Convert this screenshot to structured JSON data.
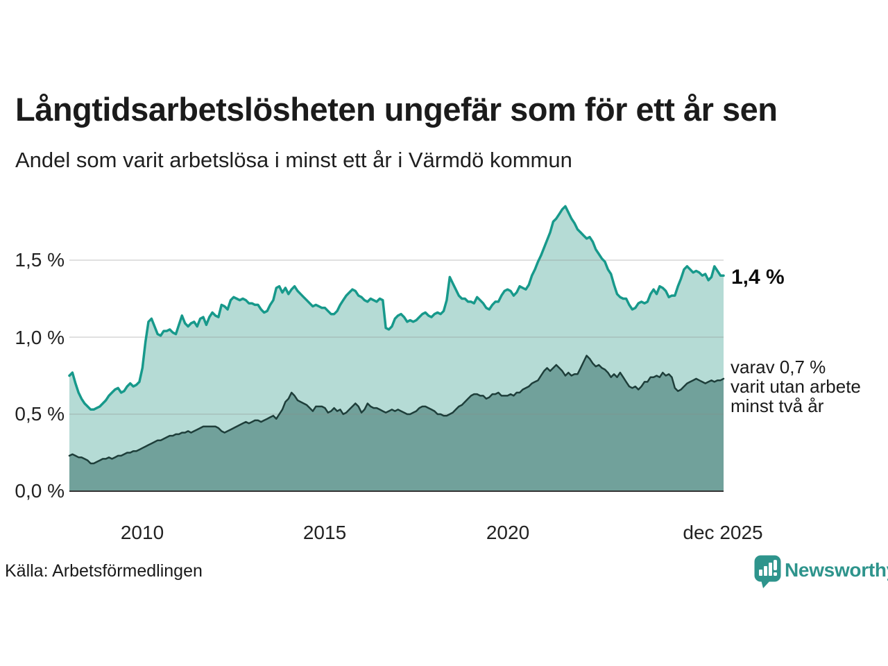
{
  "header": {
    "title": "Långtidsarbetslösheten ungefär som för ett år sen",
    "subtitle": "Andel som varit arbetslösa i minst ett år i Värmdö kommun"
  },
  "footer": {
    "source": "Källa: Arbetsförmedlingen",
    "brand": "Newsworthy",
    "brand_color": "#2e948c"
  },
  "chart_data": {
    "type": "area",
    "title": "Långtidsarbetslösheten ungefär som för ett år sen",
    "subtitle": "Andel som varit arbetslösa i minst ett år i Värmdö kommun",
    "unit": "%",
    "x_start": "jan 2008",
    "x_end": "dec 2025",
    "ylim": [
      0,
      1.95
    ],
    "grid": true,
    "grid_color": "#8a8a8a",
    "axis_color": "#333333",
    "y_ticks": [
      {
        "value": 1.5,
        "label": "1,5 %"
      },
      {
        "value": 1.0,
        "label": "1,0 %"
      },
      {
        "value": 0.5,
        "label": "0,5 %"
      },
      {
        "value": 0.0,
        "label": "0,0 %"
      }
    ],
    "x_ticks": [
      {
        "year": 2010,
        "label": "2010"
      },
      {
        "year": 2015,
        "label": "2015"
      },
      {
        "year": 2020,
        "label": "2020"
      },
      {
        "year": 2025.92,
        "label": "dec 2025"
      }
    ],
    "series": [
      {
        "name": "Andel som varit arbetslösa minst ett år",
        "color": "#17998b",
        "fill": "#b5dbd5",
        "end_label": "1,4 %",
        "end_value": 1.4,
        "values": [
          0.75,
          0.77,
          0.7,
          0.64,
          0.6,
          0.57,
          0.55,
          0.53,
          0.53,
          0.54,
          0.55,
          0.57,
          0.59,
          0.62,
          0.64,
          0.66,
          0.67,
          0.64,
          0.65,
          0.68,
          0.7,
          0.68,
          0.69,
          0.71,
          0.8,
          0.97,
          1.1,
          1.12,
          1.07,
          1.02,
          1.01,
          1.04,
          1.04,
          1.05,
          1.03,
          1.02,
          1.08,
          1.14,
          1.09,
          1.07,
          1.09,
          1.1,
          1.07,
          1.12,
          1.13,
          1.08,
          1.13,
          1.16,
          1.14,
          1.13,
          1.21,
          1.2,
          1.18,
          1.24,
          1.26,
          1.25,
          1.24,
          1.25,
          1.24,
          1.22,
          1.22,
          1.21,
          1.21,
          1.18,
          1.16,
          1.17,
          1.21,
          1.24,
          1.32,
          1.33,
          1.29,
          1.32,
          1.28,
          1.31,
          1.33,
          1.3,
          1.28,
          1.26,
          1.24,
          1.22,
          1.2,
          1.21,
          1.2,
          1.19,
          1.19,
          1.17,
          1.15,
          1.15,
          1.17,
          1.21,
          1.24,
          1.27,
          1.29,
          1.31,
          1.3,
          1.27,
          1.26,
          1.24,
          1.23,
          1.25,
          1.24,
          1.23,
          1.25,
          1.24,
          1.06,
          1.05,
          1.07,
          1.12,
          1.14,
          1.15,
          1.13,
          1.1,
          1.11,
          1.1,
          1.11,
          1.13,
          1.15,
          1.16,
          1.14,
          1.13,
          1.15,
          1.16,
          1.15,
          1.17,
          1.24,
          1.39,
          1.35,
          1.31,
          1.27,
          1.25,
          1.25,
          1.23,
          1.23,
          1.22,
          1.26,
          1.24,
          1.22,
          1.19,
          1.18,
          1.21,
          1.23,
          1.23,
          1.27,
          1.3,
          1.31,
          1.3,
          1.27,
          1.29,
          1.33,
          1.32,
          1.31,
          1.34,
          1.4,
          1.44,
          1.49,
          1.53,
          1.58,
          1.63,
          1.68,
          1.75,
          1.77,
          1.8,
          1.83,
          1.85,
          1.81,
          1.77,
          1.74,
          1.7,
          1.68,
          1.66,
          1.64,
          1.65,
          1.62,
          1.57,
          1.54,
          1.51,
          1.49,
          1.44,
          1.41,
          1.34,
          1.28,
          1.26,
          1.25,
          1.25,
          1.21,
          1.18,
          1.19,
          1.22,
          1.23,
          1.22,
          1.23,
          1.28,
          1.31,
          1.28,
          1.33,
          1.32,
          1.3,
          1.26,
          1.27,
          1.27,
          1.33,
          1.38,
          1.44,
          1.46,
          1.44,
          1.42,
          1.43,
          1.42,
          1.4,
          1.41,
          1.37,
          1.39,
          1.46,
          1.43,
          1.4,
          1.4
        ]
      },
      {
        "name": "varav utan arbete minst två år",
        "color": "#1e3e3a",
        "fill": "#71a19b",
        "end_value": 0.7,
        "annotation": [
          "varav 0,7 %",
          "varit utan arbete",
          "minst två år"
        ],
        "values": [
          0.23,
          0.24,
          0.23,
          0.22,
          0.22,
          0.21,
          0.2,
          0.18,
          0.18,
          0.19,
          0.2,
          0.21,
          0.21,
          0.22,
          0.21,
          0.22,
          0.23,
          0.23,
          0.24,
          0.25,
          0.25,
          0.26,
          0.26,
          0.27,
          0.28,
          0.29,
          0.3,
          0.31,
          0.32,
          0.33,
          0.33,
          0.34,
          0.35,
          0.36,
          0.36,
          0.37,
          0.37,
          0.38,
          0.38,
          0.39,
          0.38,
          0.39,
          0.4,
          0.41,
          0.42,
          0.42,
          0.42,
          0.42,
          0.42,
          0.41,
          0.39,
          0.38,
          0.39,
          0.4,
          0.41,
          0.42,
          0.43,
          0.44,
          0.45,
          0.44,
          0.45,
          0.46,
          0.46,
          0.45,
          0.46,
          0.47,
          0.48,
          0.49,
          0.47,
          0.5,
          0.53,
          0.58,
          0.6,
          0.64,
          0.62,
          0.59,
          0.58,
          0.57,
          0.56,
          0.54,
          0.52,
          0.55,
          0.55,
          0.55,
          0.54,
          0.51,
          0.52,
          0.54,
          0.52,
          0.53,
          0.5,
          0.51,
          0.53,
          0.55,
          0.57,
          0.55,
          0.51,
          0.53,
          0.57,
          0.55,
          0.54,
          0.54,
          0.53,
          0.52,
          0.51,
          0.52,
          0.53,
          0.52,
          0.53,
          0.52,
          0.51,
          0.5,
          0.5,
          0.51,
          0.52,
          0.54,
          0.55,
          0.55,
          0.54,
          0.53,
          0.52,
          0.5,
          0.5,
          0.49,
          0.49,
          0.5,
          0.51,
          0.53,
          0.55,
          0.56,
          0.58,
          0.6,
          0.62,
          0.63,
          0.63,
          0.62,
          0.62,
          0.6,
          0.61,
          0.63,
          0.63,
          0.64,
          0.62,
          0.62,
          0.62,
          0.63,
          0.62,
          0.64,
          0.64,
          0.66,
          0.67,
          0.68,
          0.7,
          0.71,
          0.72,
          0.75,
          0.78,
          0.8,
          0.78,
          0.8,
          0.82,
          0.8,
          0.78,
          0.75,
          0.77,
          0.75,
          0.76,
          0.76,
          0.8,
          0.84,
          0.88,
          0.86,
          0.83,
          0.81,
          0.82,
          0.8,
          0.79,
          0.77,
          0.74,
          0.76,
          0.74,
          0.77,
          0.74,
          0.71,
          0.68,
          0.67,
          0.68,
          0.66,
          0.68,
          0.71,
          0.71,
          0.74,
          0.74,
          0.75,
          0.74,
          0.77,
          0.75,
          0.76,
          0.74,
          0.67,
          0.65,
          0.66,
          0.68,
          0.7,
          0.71,
          0.72,
          0.73,
          0.72,
          0.71,
          0.7,
          0.71,
          0.72,
          0.71,
          0.72,
          0.72,
          0.73
        ]
      }
    ]
  }
}
